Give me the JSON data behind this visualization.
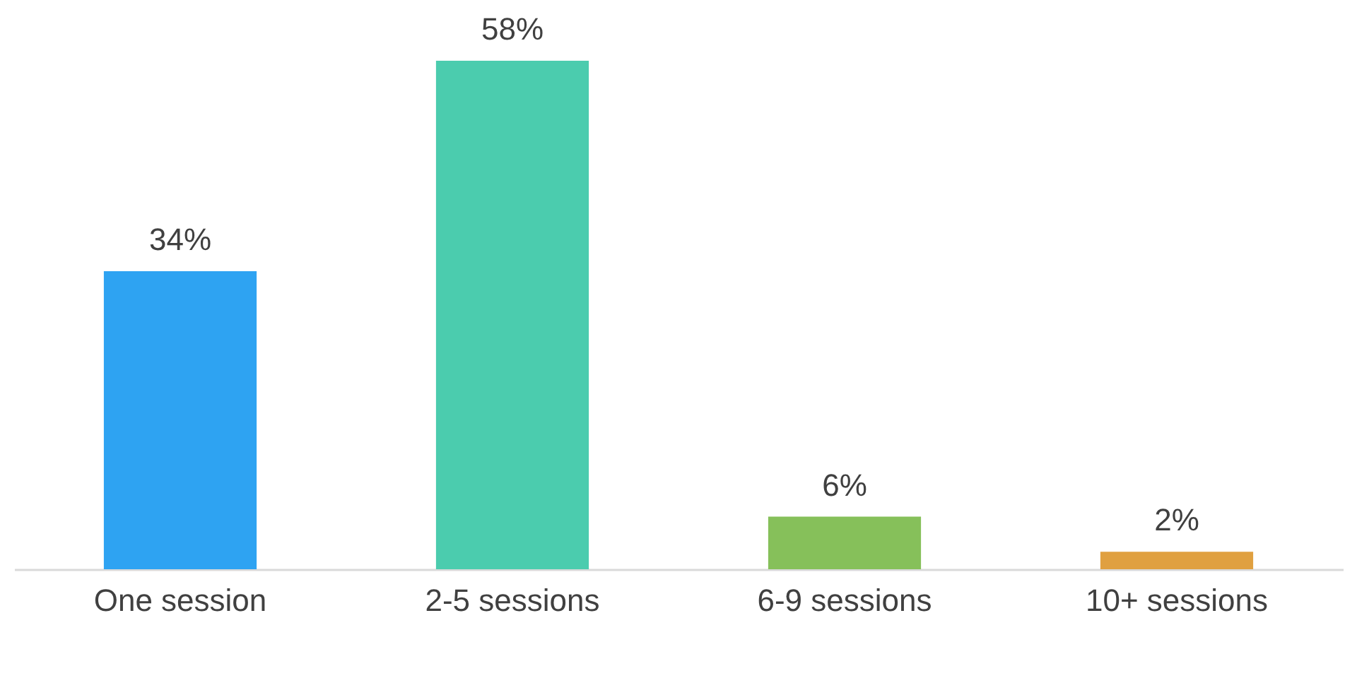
{
  "chart_data": {
    "type": "bar",
    "categories": [
      "One session",
      "2-5 sessions",
      "6-9 sessions",
      "10+ sessions"
    ],
    "values": [
      34,
      58,
      6,
      2
    ],
    "colors": [
      "#2ea3f2",
      "#4bccae",
      "#86c05a",
      "#e0a040"
    ],
    "value_labels": [
      "34%",
      "58%",
      "6%",
      "2%"
    ],
    "grid": false
  }
}
